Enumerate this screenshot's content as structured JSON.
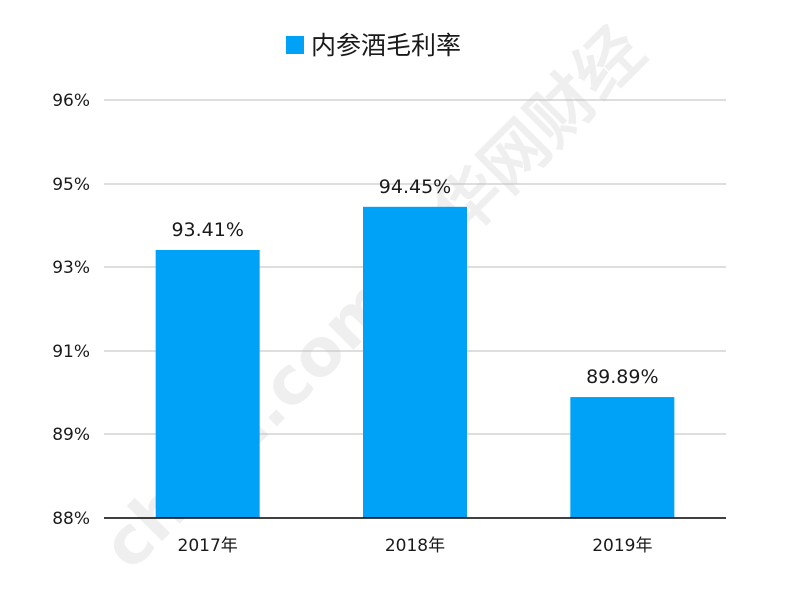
{
  "chart_data": {
    "type": "bar",
    "title": "",
    "xlabel": "",
    "ylabel": "",
    "categories": [
      "2017年",
      "2018年",
      "2019年"
    ],
    "series": [
      {
        "name": "内参酒毛利率",
        "values": [
          93.41,
          94.45,
          89.89
        ],
        "data_labels": [
          "93.41%",
          "94.45%",
          "89.89%"
        ]
      }
    ],
    "yticks": [
      "96%",
      "95%",
      "93%",
      "91%",
      "89%",
      "88%"
    ],
    "ytick_values": [
      96,
      95,
      93,
      91,
      89,
      88
    ],
    "grid": true,
    "legend_position": "top",
    "colors": {
      "bar": "#00a2f7",
      "grid": "#bdbdbd",
      "axis": "#000000"
    }
  },
  "watermark": {
    "text": "china.com 中华网财经"
  }
}
